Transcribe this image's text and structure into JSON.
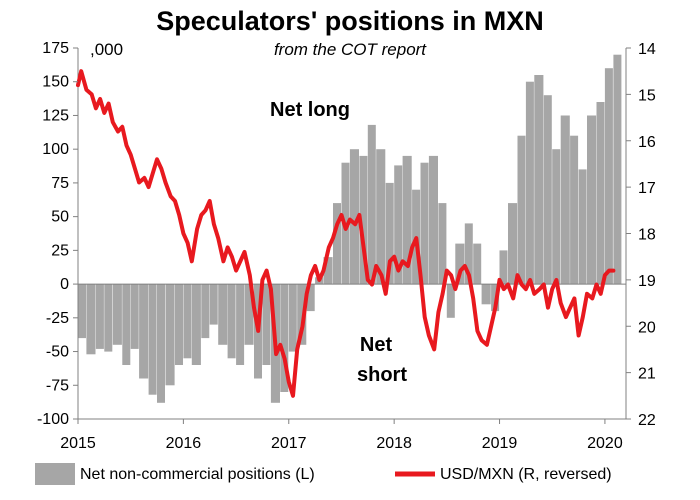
{
  "chart_data": {
    "type": "bar+line",
    "title": "Speculators' positions in MXN",
    "subtitle": "from the COT report",
    "left_axis_units": ",000",
    "left_axis": {
      "range": [
        -100,
        175
      ],
      "ticks": [
        175,
        150,
        125,
        100,
        75,
        50,
        25,
        0,
        -25,
        -50,
        -75,
        -100
      ]
    },
    "right_axis": {
      "range": [
        14,
        22
      ],
      "reversed": true,
      "ticks": [
        14,
        15,
        16,
        17,
        18,
        19,
        20,
        21,
        22
      ]
    },
    "x_axis": {
      "range": [
        2015.0,
        2020.2
      ],
      "ticks": [
        "2015",
        "2016",
        "2017",
        "2018",
        "2019",
        "2020"
      ]
    },
    "grid": false,
    "legend_position": "bottom",
    "annotations": [
      "Net long",
      "Net",
      "short"
    ],
    "series": [
      {
        "name": "Net non-commercial positions (L)",
        "axis": "left",
        "type": "bar",
        "color": "#a6a6a6",
        "points": [
          [
            2015.0,
            -40
          ],
          [
            2015.08,
            -52
          ],
          [
            2015.17,
            -48
          ],
          [
            2015.25,
            -50
          ],
          [
            2015.33,
            -45
          ],
          [
            2015.42,
            -60
          ],
          [
            2015.5,
            -48
          ],
          [
            2015.58,
            -70
          ],
          [
            2015.67,
            -82
          ],
          [
            2015.75,
            -88
          ],
          [
            2015.83,
            -75
          ],
          [
            2015.92,
            -60
          ],
          [
            2016.0,
            -55
          ],
          [
            2016.08,
            -60
          ],
          [
            2016.17,
            -40
          ],
          [
            2016.25,
            -30
          ],
          [
            2016.33,
            -45
          ],
          [
            2016.42,
            -55
          ],
          [
            2016.5,
            -60
          ],
          [
            2016.58,
            -45
          ],
          [
            2016.67,
            -70
          ],
          [
            2016.75,
            -60
          ],
          [
            2016.83,
            -88
          ],
          [
            2016.92,
            -80
          ],
          [
            2017.0,
            -50
          ],
          [
            2017.08,
            -45
          ],
          [
            2017.17,
            -20
          ],
          [
            2017.25,
            5
          ],
          [
            2017.33,
            20
          ],
          [
            2017.42,
            60
          ],
          [
            2017.5,
            90
          ],
          [
            2017.58,
            100
          ],
          [
            2017.67,
            95
          ],
          [
            2017.75,
            118
          ],
          [
            2017.83,
            100
          ],
          [
            2017.92,
            75
          ],
          [
            2018.0,
            88
          ],
          [
            2018.08,
            95
          ],
          [
            2018.17,
            70
          ],
          [
            2018.25,
            90
          ],
          [
            2018.33,
            95
          ],
          [
            2018.42,
            60
          ],
          [
            2018.5,
            -25
          ],
          [
            2018.58,
            30
          ],
          [
            2018.67,
            45
          ],
          [
            2018.75,
            30
          ],
          [
            2018.83,
            -15
          ],
          [
            2018.92,
            -20
          ],
          [
            2019.0,
            25
          ],
          [
            2019.08,
            60
          ],
          [
            2019.17,
            110
          ],
          [
            2019.25,
            150
          ],
          [
            2019.33,
            155
          ],
          [
            2019.42,
            140
          ],
          [
            2019.5,
            100
          ],
          [
            2019.58,
            125
          ],
          [
            2019.67,
            110
          ],
          [
            2019.75,
            85
          ],
          [
            2019.83,
            125
          ],
          [
            2019.92,
            135
          ],
          [
            2020.0,
            160
          ],
          [
            2020.08,
            170
          ]
        ]
      },
      {
        "name": "USD/MXN (R, reversed)",
        "axis": "right",
        "type": "line",
        "color": "#e8191f",
        "points": [
          [
            2015.0,
            14.8
          ],
          [
            2015.03,
            14.5
          ],
          [
            2015.08,
            14.9
          ],
          [
            2015.13,
            15.0
          ],
          [
            2015.17,
            15.3
          ],
          [
            2015.21,
            15.1
          ],
          [
            2015.25,
            15.4
          ],
          [
            2015.29,
            15.2
          ],
          [
            2015.33,
            15.6
          ],
          [
            2015.38,
            15.8
          ],
          [
            2015.42,
            15.7
          ],
          [
            2015.46,
            16.1
          ],
          [
            2015.5,
            16.3
          ],
          [
            2015.54,
            16.6
          ],
          [
            2015.58,
            16.9
          ],
          [
            2015.63,
            16.8
          ],
          [
            2015.67,
            17.0
          ],
          [
            2015.71,
            16.7
          ],
          [
            2015.75,
            16.4
          ],
          [
            2015.79,
            16.6
          ],
          [
            2015.83,
            16.9
          ],
          [
            2015.88,
            17.2
          ],
          [
            2015.92,
            17.3
          ],
          [
            2015.96,
            17.6
          ],
          [
            2016.0,
            18.0
          ],
          [
            2016.04,
            18.2
          ],
          [
            2016.08,
            18.6
          ],
          [
            2016.13,
            17.9
          ],
          [
            2016.17,
            17.6
          ],
          [
            2016.21,
            17.5
          ],
          [
            2016.25,
            17.3
          ],
          [
            2016.29,
            17.8
          ],
          [
            2016.33,
            18.1
          ],
          [
            2016.38,
            18.6
          ],
          [
            2016.42,
            18.3
          ],
          [
            2016.46,
            18.5
          ],
          [
            2016.5,
            18.8
          ],
          [
            2016.54,
            18.6
          ],
          [
            2016.58,
            18.4
          ],
          [
            2016.63,
            18.9
          ],
          [
            2016.67,
            19.6
          ],
          [
            2016.71,
            20.1
          ],
          [
            2016.75,
            19.0
          ],
          [
            2016.79,
            18.8
          ],
          [
            2016.83,
            19.2
          ],
          [
            2016.88,
            20.6
          ],
          [
            2016.92,
            20.4
          ],
          [
            2016.96,
            20.7
          ],
          [
            2017.0,
            21.2
          ],
          [
            2017.04,
            21.5
          ],
          [
            2017.08,
            20.5
          ],
          [
            2017.13,
            20.0
          ],
          [
            2017.17,
            19.3
          ],
          [
            2017.21,
            18.9
          ],
          [
            2017.25,
            18.7
          ],
          [
            2017.29,
            19.0
          ],
          [
            2017.33,
            18.8
          ],
          [
            2017.38,
            18.3
          ],
          [
            2017.42,
            18.1
          ],
          [
            2017.46,
            17.8
          ],
          [
            2017.5,
            17.6
          ],
          [
            2017.54,
            17.9
          ],
          [
            2017.58,
            17.7
          ],
          [
            2017.63,
            17.8
          ],
          [
            2017.67,
            17.6
          ],
          [
            2017.71,
            18.3
          ],
          [
            2017.75,
            19.0
          ],
          [
            2017.79,
            19.1
          ],
          [
            2017.83,
            18.7
          ],
          [
            2017.88,
            18.9
          ],
          [
            2017.92,
            19.3
          ],
          [
            2017.96,
            18.6
          ],
          [
            2018.0,
            18.5
          ],
          [
            2018.04,
            18.8
          ],
          [
            2018.08,
            18.6
          ],
          [
            2018.13,
            18.7
          ],
          [
            2018.17,
            18.3
          ],
          [
            2018.21,
            18.1
          ],
          [
            2018.25,
            18.9
          ],
          [
            2018.29,
            19.8
          ],
          [
            2018.33,
            20.2
          ],
          [
            2018.38,
            20.5
          ],
          [
            2018.42,
            19.7
          ],
          [
            2018.46,
            19.3
          ],
          [
            2018.5,
            18.8
          ],
          [
            2018.54,
            18.9
          ],
          [
            2018.58,
            19.2
          ],
          [
            2018.63,
            18.8
          ],
          [
            2018.67,
            18.7
          ],
          [
            2018.71,
            18.9
          ],
          [
            2018.75,
            19.4
          ],
          [
            2018.79,
            20.1
          ],
          [
            2018.83,
            20.3
          ],
          [
            2018.88,
            20.4
          ],
          [
            2018.92,
            20.0
          ],
          [
            2018.96,
            19.6
          ],
          [
            2019.0,
            19.0
          ],
          [
            2019.04,
            19.2
          ],
          [
            2019.08,
            19.1
          ],
          [
            2019.13,
            19.4
          ],
          [
            2019.17,
            18.9
          ],
          [
            2019.21,
            19.1
          ],
          [
            2019.25,
            19.2
          ],
          [
            2019.29,
            19.0
          ],
          [
            2019.33,
            19.3
          ],
          [
            2019.38,
            19.2
          ],
          [
            2019.42,
            19.1
          ],
          [
            2019.46,
            19.6
          ],
          [
            2019.5,
            19.2
          ],
          [
            2019.54,
            19.0
          ],
          [
            2019.58,
            19.5
          ],
          [
            2019.63,
            19.8
          ],
          [
            2019.67,
            19.6
          ],
          [
            2019.71,
            19.4
          ],
          [
            2019.75,
            20.2
          ],
          [
            2019.79,
            19.8
          ],
          [
            2019.83,
            19.3
          ],
          [
            2019.88,
            19.4
          ],
          [
            2019.92,
            19.1
          ],
          [
            2019.96,
            19.3
          ],
          [
            2020.0,
            18.9
          ],
          [
            2020.04,
            18.8
          ],
          [
            2020.08,
            18.8
          ]
        ]
      }
    ]
  }
}
